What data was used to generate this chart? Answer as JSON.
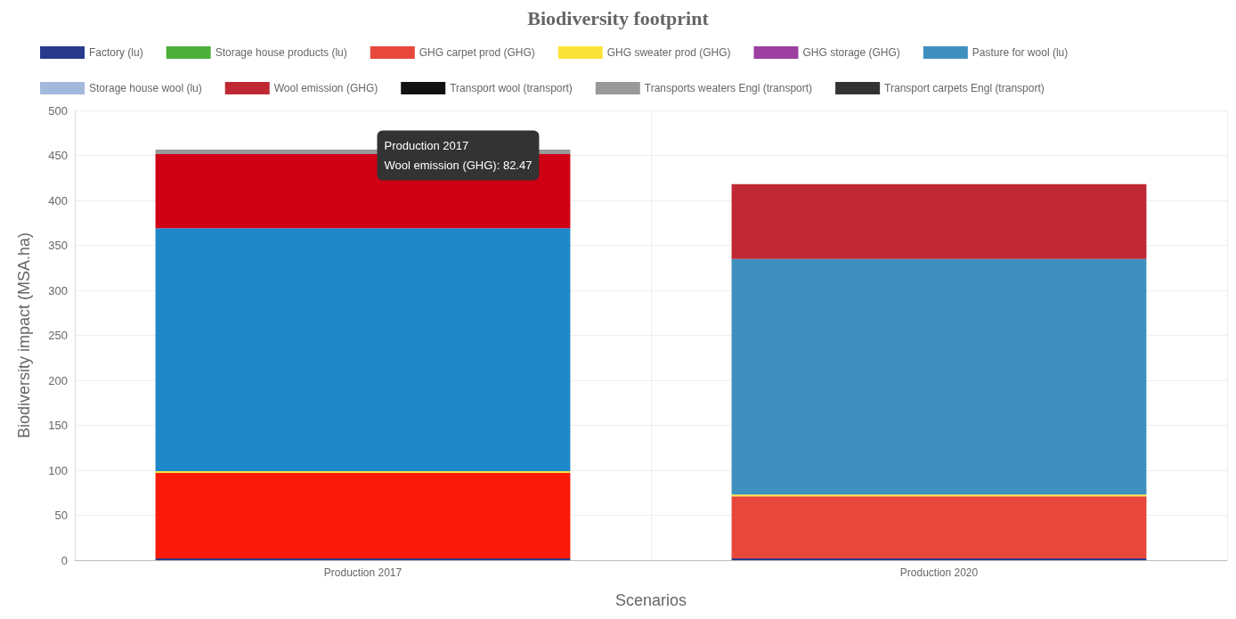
{
  "chart_data": {
    "type": "bar",
    "title": "Biodiversity footprint",
    "xlabel": "Scenarios",
    "ylabel": "Biodiversity impact (MSA.ha)",
    "categories": [
      "Production 2017",
      "Production 2020"
    ],
    "stacked": true,
    "ylim": [
      0,
      500
    ],
    "yticks": [
      0,
      50,
      100,
      150,
      200,
      250,
      300,
      350,
      400,
      450,
      500
    ],
    "grid": true,
    "legend": "top",
    "series": [
      {
        "name": "Factory (lu)",
        "color": "#283a8c",
        "values": [
          2,
          2
        ]
      },
      {
        "name": "Storage house products (lu)",
        "color": "#4caf3c",
        "values": [
          0,
          0
        ]
      },
      {
        "name": "GHG carpet prod (GHG)",
        "color": "#e8473b",
        "colors": [
          "#fb1a0a",
          "#e8473b"
        ],
        "values": [
          95,
          69
        ]
      },
      {
        "name": "GHG sweater prod (GHG)",
        "color": "#fbe43a",
        "values": [
          2,
          2
        ]
      },
      {
        "name": "GHG storage (GHG)",
        "color": "#9c3fa0",
        "values": [
          0,
          0
        ]
      },
      {
        "name": "Pasture for wool (lu)",
        "color": "#3f8fbf",
        "colors": [
          "#1e88c8",
          "#3f8fbf"
        ],
        "values": [
          270,
          262
        ]
      },
      {
        "name": "Storage house wool (lu)",
        "color": "#a3b9dc",
        "values": [
          0,
          0
        ]
      },
      {
        "name": "Wool emission (GHG)",
        "color": "#bf2833",
        "colors": [
          "#d00015",
          "#bf2833"
        ],
        "values": [
          82.47,
          83
        ]
      },
      {
        "name": "Transport wool (transport)",
        "color": "#111111",
        "values": [
          0,
          0
        ]
      },
      {
        "name": "Transports weaters Engl (transport)",
        "color": "#999999",
        "values": [
          5,
          0
        ]
      },
      {
        "name": "Transport carpets Engl (transport)",
        "color": "#333333",
        "values": [
          0,
          0
        ]
      }
    ],
    "annotations": [
      {
        "text": "Production 2017\nWool emission (GHG): 82.47",
        "x": "Production 2017",
        "y": 452
      }
    ]
  }
}
